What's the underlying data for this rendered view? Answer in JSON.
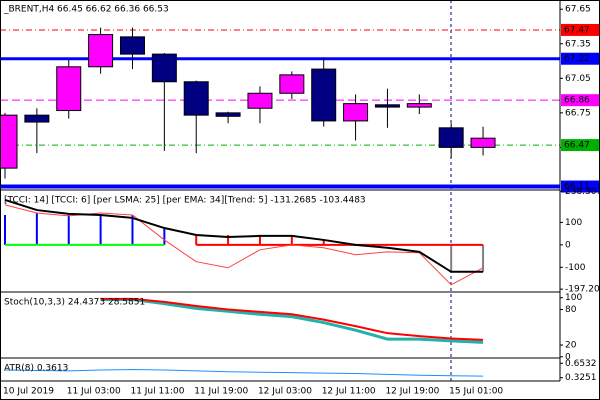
{
  "chart_data": [
    {
      "type": "candlestick",
      "title": "_BRENT,H4  66.45 66.62 66.36 66.53",
      "categories": [
        "10 Jul 2019",
        null,
        "11 Jul 03:00",
        null,
        "11 Jul 11:00",
        null,
        "11 Jul 19:00",
        null,
        "12 Jul 03:00",
        null,
        "12 Jul 11:00",
        null,
        "12 Jul 19:00",
        null,
        "15 Jul 01:00",
        null
      ],
      "open": [
        66.27,
        66.73,
        66.77,
        67.15,
        67.41,
        67.26,
        67.02,
        66.75,
        66.79,
        66.92,
        67.13,
        66.68,
        66.82,
        66.8,
        66.62,
        66.45
      ],
      "high": [
        66.75,
        66.79,
        67.21,
        67.49,
        67.49,
        67.27,
        67.03,
        66.76,
        66.98,
        67.11,
        67.23,
        66.91,
        66.96,
        66.91,
        66.66,
        66.63
      ],
      "low": [
        66.18,
        66.4,
        66.7,
        67.09,
        67.13,
        66.42,
        66.4,
        66.66,
        66.66,
        66.87,
        66.63,
        66.51,
        66.62,
        66.74,
        66.36,
        66.38
      ],
      "close": [
        66.73,
        66.67,
        67.15,
        67.43,
        67.26,
        67.02,
        66.73,
        66.72,
        66.92,
        67.08,
        66.68,
        66.83,
        66.8,
        66.83,
        66.45,
        66.53
      ],
      "up_color": "#ff00ff",
      "down_color": "#000080",
      "ylim": [
        66.08,
        67.73
      ],
      "yticks": [
        67.65,
        67.35,
        67.05,
        66.75,
        66.45
      ],
      "levels": [
        {
          "value": 67.47,
          "color": "#ff0000",
          "style": "dashdot",
          "width": 1
        },
        {
          "value": 67.22,
          "color": "#0000ff",
          "style": "solid",
          "width": 3
        },
        {
          "value": 66.86,
          "color": "#ff00ff",
          "style": "dash",
          "width": 1
        },
        {
          "value": 66.47,
          "color": "#00b000",
          "style": "dashdot",
          "width": 1
        },
        {
          "value": 66.11,
          "color": "#0000ff",
          "style": "solid",
          "width": 4
        }
      ]
    },
    {
      "type": "indicator",
      "title": "[TCCI: 14] [TCCI: 6] [per LSMA: 25] [per EMA: 34][Trend: 5]  -131.2685 -103.4483",
      "ylim": [
        -210,
        240
      ],
      "yticks": [
        238.3072,
        100,
        0,
        -100,
        -197.209
      ],
      "series": [
        {
          "style": "bar",
          "values": [
            133,
            142,
            133,
            133,
            133,
            75,
            44,
            44,
            44,
            44,
            22,
            0,
            0,
            0,
            -120,
            -120
          ],
          "colors": [
            "#0000ff",
            "#0000ff",
            "#0000ff",
            "#0000ff",
            "#0000ff",
            "#0000ff",
            "#ff0000",
            "#ff0000",
            "#ff0000",
            "#ff0000",
            "#ff0000",
            "#ff0000",
            "#ff0000",
            "#ff0000",
            "#808080",
            "#808080"
          ]
        },
        {
          "style": "line",
          "color": "#00ff00",
          "width": 2,
          "values": [
            0,
            0,
            0,
            0,
            0,
            0,
            null,
            null,
            null,
            null,
            null,
            null,
            null,
            null,
            null,
            null
          ]
        },
        {
          "style": "line",
          "color": "#ff0000",
          "width": 2,
          "values": [
            null,
            null,
            null,
            null,
            null,
            null,
            0,
            0,
            0,
            0,
            0,
            0,
            0,
            0,
            0,
            0
          ]
        },
        {
          "style": "line",
          "color": "#ff4040",
          "width": 1,
          "values": [
            178,
            142,
            129,
            142,
            133,
            22,
            -75,
            -102,
            -22,
            0,
            -13,
            -44,
            -31,
            -35,
            -178,
            -102
          ]
        },
        {
          "style": "line",
          "color": "#000000",
          "width": 2,
          "values": [
            200,
            155,
            138,
            133,
            120,
            75,
            44,
            35,
            40,
            40,
            22,
            0,
            -13,
            -31,
            -120,
            -120
          ]
        }
      ]
    },
    {
      "type": "indicator",
      "title": "Stoch(10,3,3) 24.4373 28.5851",
      "ylim": [
        -2,
        108
      ],
      "yticks": [
        100,
        80,
        20,
        0
      ],
      "series": [
        {
          "style": "line",
          "color": "#20b2aa",
          "width": 3,
          "values": [
            null,
            null,
            null,
            97,
            97,
            90,
            82,
            77,
            72,
            68,
            58,
            45,
            30,
            30,
            27,
            24.4373
          ]
        },
        {
          "style": "line",
          "color": "#ff0000",
          "width": 2,
          "values": [
            null,
            null,
            null,
            98,
            98,
            93,
            86,
            80,
            76,
            72,
            63,
            52,
            40,
            35,
            31,
            28.5851
          ]
        }
      ]
    },
    {
      "type": "indicator",
      "title": "ATR(8) 0.3613",
      "ylim": [
        0.25,
        0.75
      ],
      "yticks": [
        0.6532,
        0.3251
      ],
      "series": [
        {
          "style": "line",
          "color": "#1e90ff",
          "width": 1,
          "values": [
            0.5,
            0.49,
            0.48,
            0.5,
            0.51,
            0.5,
            0.48,
            0.46,
            0.45,
            0.44,
            0.43,
            0.42,
            0.4,
            0.38,
            0.37,
            0.3613
          ]
        }
      ]
    }
  ]
}
